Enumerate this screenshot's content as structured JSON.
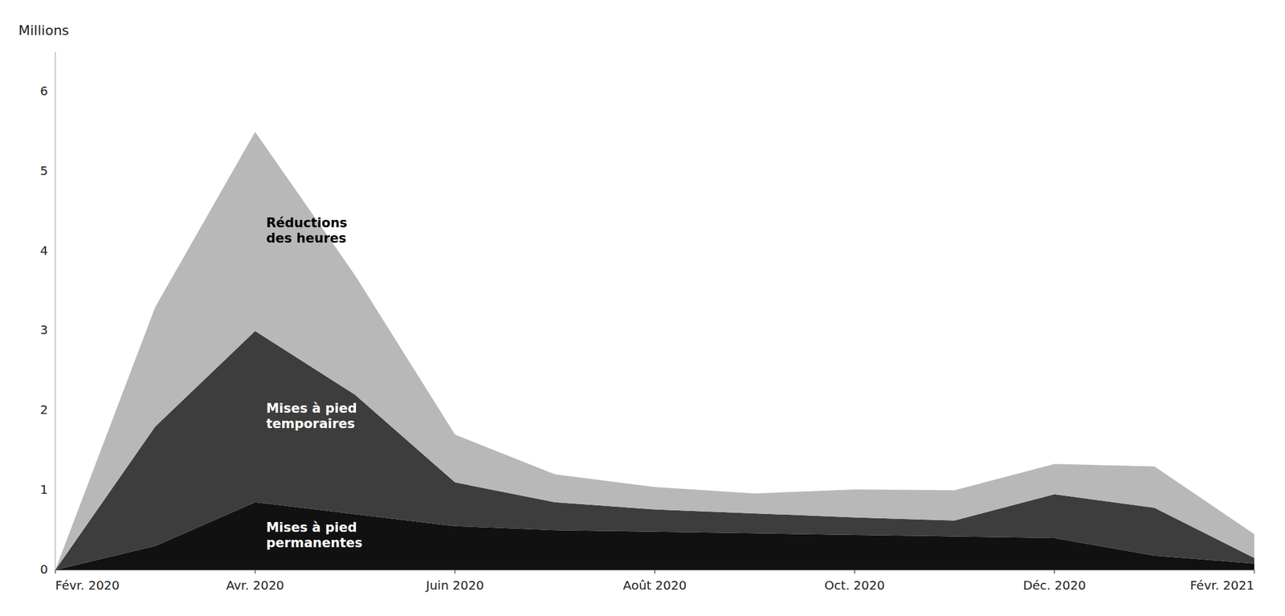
{
  "chart_data": {
    "type": "area",
    "stacked": true,
    "ylabel": "Millions",
    "categories": [
      "Févr. 2020",
      null,
      "Avr. 2020",
      null,
      "Juin 2020",
      null,
      "Août 2020",
      null,
      "Oct. 2020",
      null,
      "Déc. 2020",
      null,
      "Févr. 2021"
    ],
    "series": [
      {
        "name": "Mises à pied\npermanentes",
        "color": "#111111",
        "values": [
          0.0,
          0.3,
          0.85,
          0.7,
          0.55,
          0.5,
          0.48,
          0.46,
          0.44,
          0.42,
          0.4,
          0.18,
          0.08
        ]
      },
      {
        "name": "Mises à pied\ntemporaires",
        "color": "#3d3d3d",
        "values": [
          0.0,
          1.5,
          2.15,
          1.5,
          0.55,
          0.35,
          0.28,
          0.25,
          0.22,
          0.2,
          0.55,
          0.6,
          0.07
        ]
      },
      {
        "name": "Réductions\ndes heures",
        "color": "#b8b8b8",
        "values": [
          0.0,
          1.5,
          2.5,
          1.5,
          0.6,
          0.35,
          0.28,
          0.25,
          0.35,
          0.38,
          0.38,
          0.52,
          0.3
        ]
      }
    ],
    "ylim": [
      0,
      6.5
    ],
    "yticks": [
      0,
      1,
      2,
      3,
      4,
      5,
      6
    ],
    "grid": false
  }
}
